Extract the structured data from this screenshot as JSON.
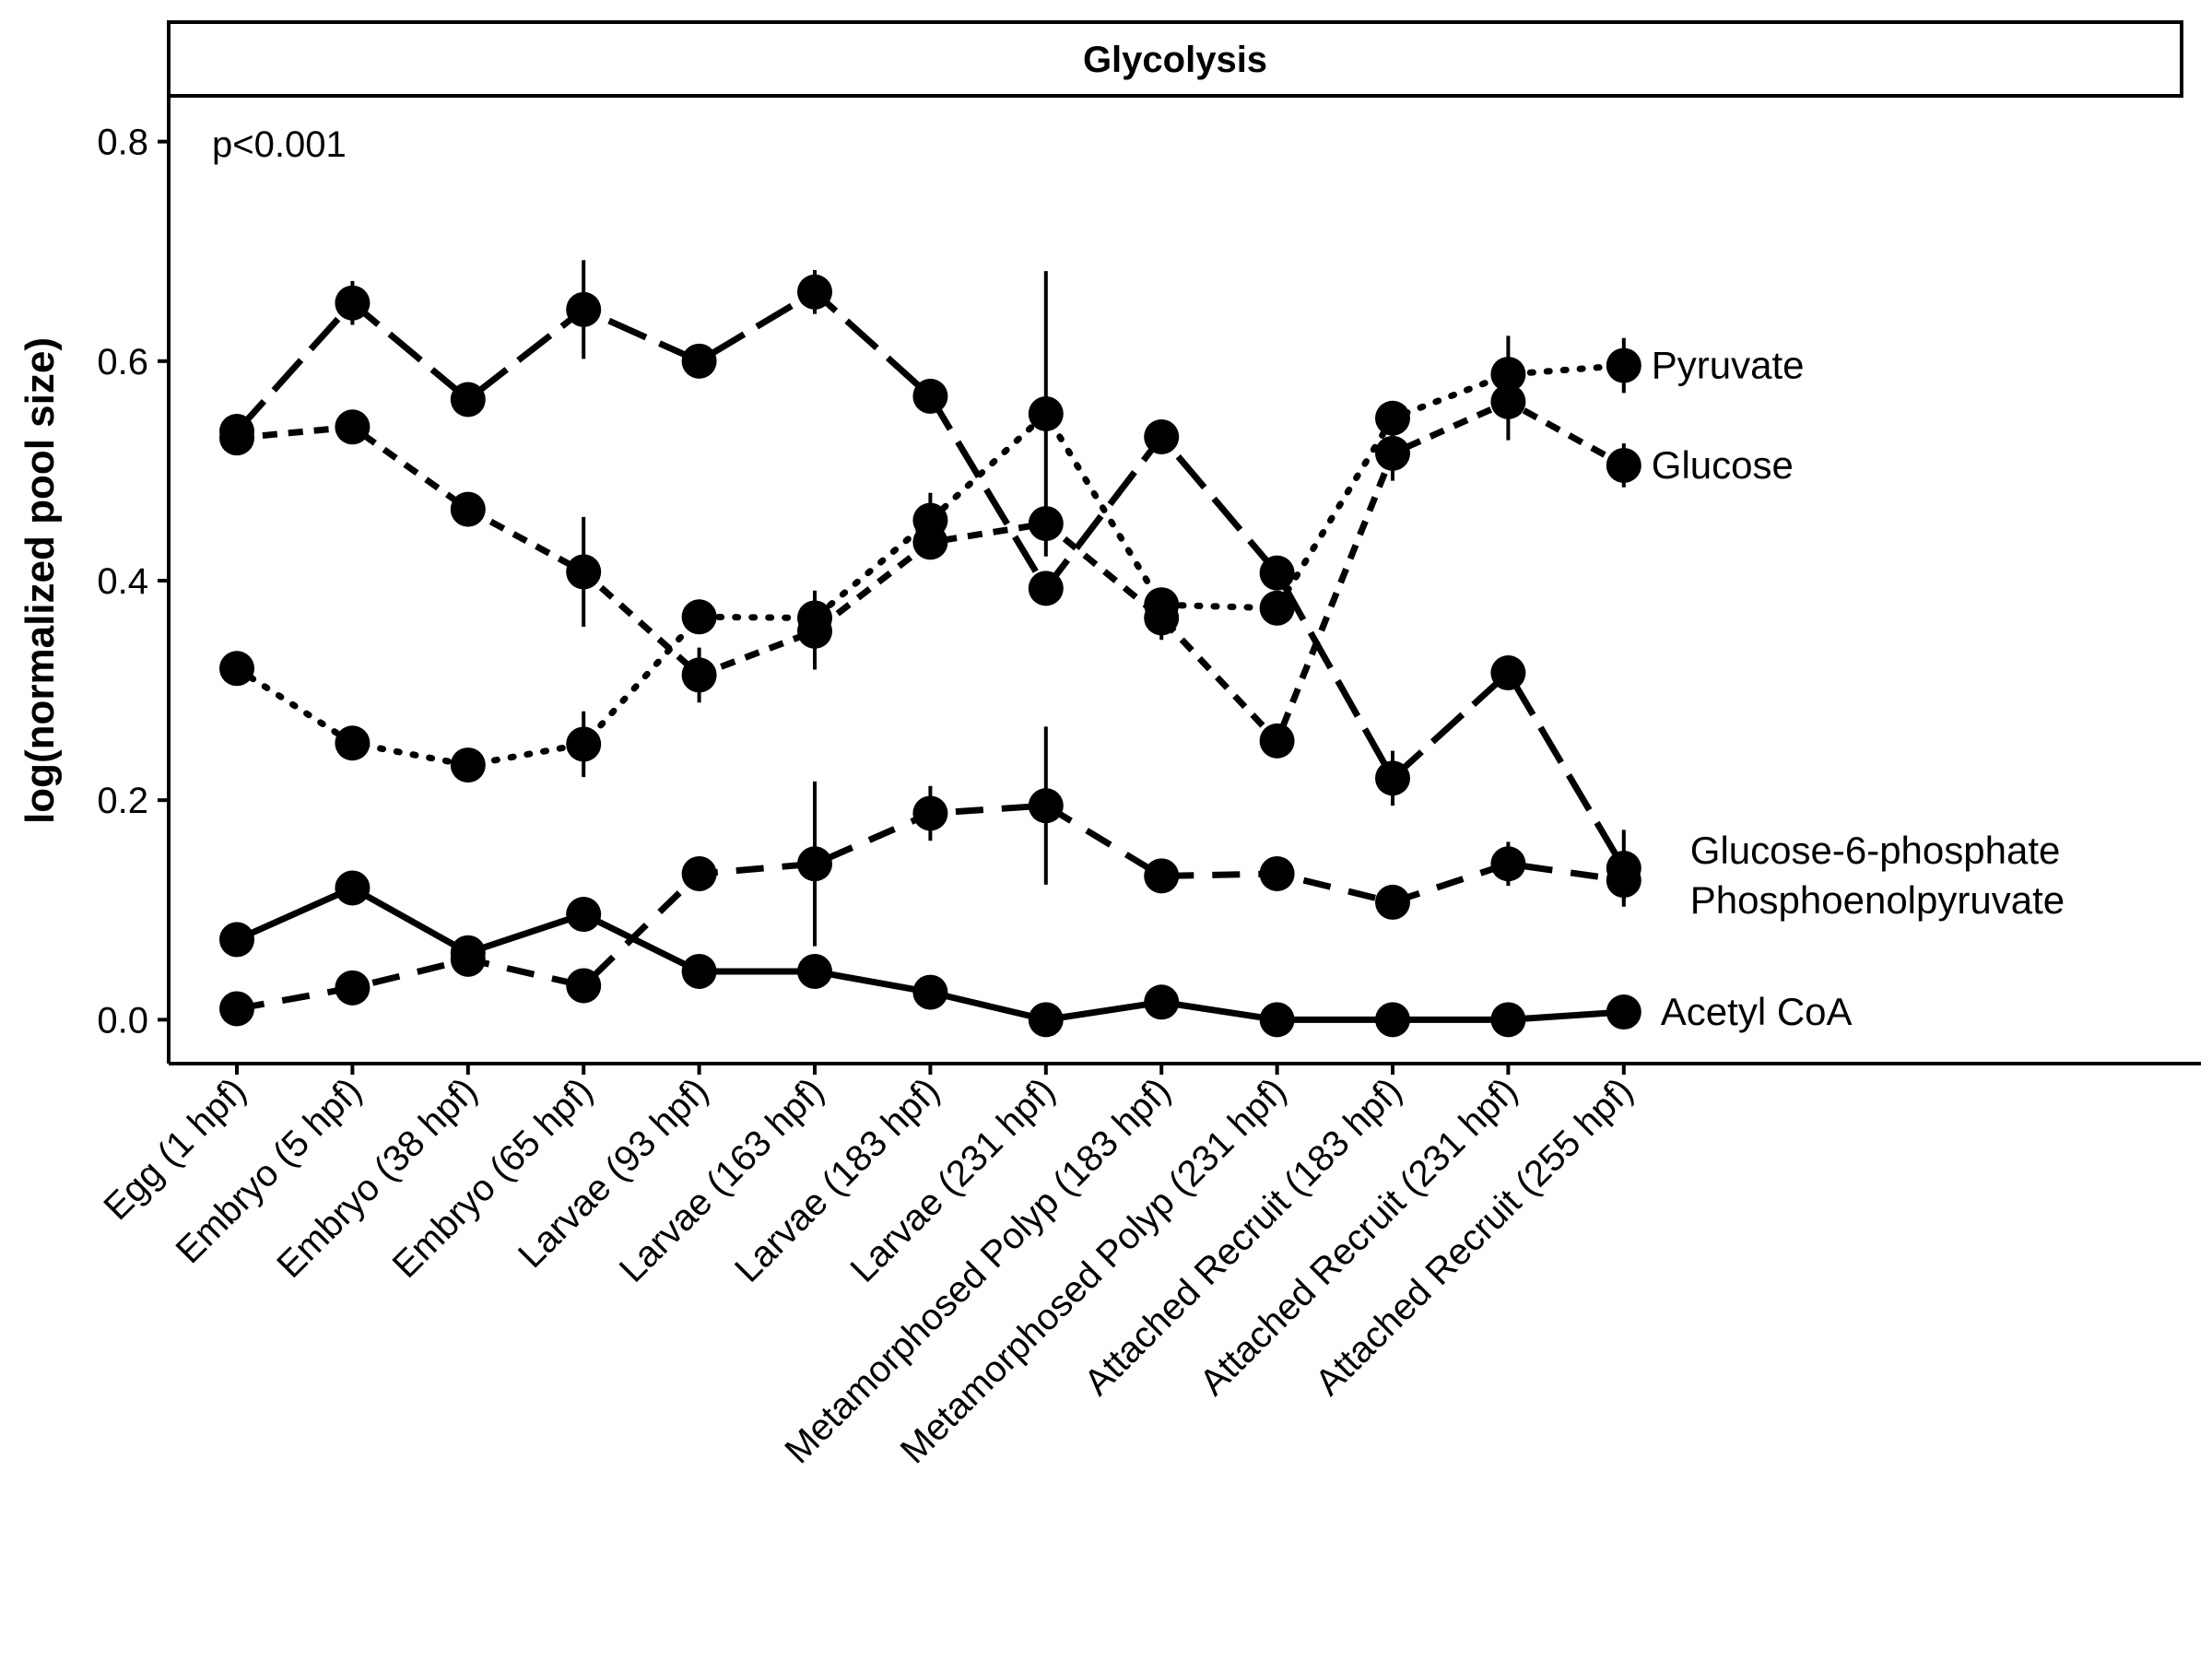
{
  "chart_data": {
    "type": "line",
    "title": "Glycolysis",
    "annotation": "p<0.001",
    "xlabel": "",
    "ylabel": "log(normalized pool size)",
    "ylim": [
      -0.04,
      0.84
    ],
    "yticks": [
      "0.0",
      "0.2",
      "0.4",
      "0.6",
      "0.8"
    ],
    "ytick_values": [
      0.0,
      0.2,
      0.4,
      0.6,
      0.8
    ],
    "grid": false,
    "legend": "direct-labels-right",
    "colors": {
      "ink": "#000000",
      "background": "#ffffff"
    },
    "categories": [
      "Egg (1 hpf)",
      "Embryo (5 hpf)",
      "Embryo (38 hpf)",
      "Embryo (65 hpf)",
      "Larvae (93 hpf)",
      "Larvae (163 hpf)",
      "Larvae (183 hpf)",
      "Larvae (231 hpf)",
      "Metamorphosed Polyp (183 hpf)",
      "Metamorphosed Polyp (231 hpf)",
      "Attached Recruit (183 hpf)",
      "Attached Recruit (231 hpf)",
      "Attached Recruit (255 hpf)"
    ],
    "series": [
      {
        "name": "Pyruvate",
        "dash": "dotted",
        "values": [
          0.32,
          0.252,
          0.232,
          0.251,
          0.367,
          0.366,
          0.455,
          0.552,
          0.378,
          0.375,
          0.548,
          0.588,
          0.596
        ],
        "errors": [
          0.005,
          0.005,
          0.005,
          0.03,
          0.01,
          0.025,
          0.025,
          0.13,
          0.015,
          0.015,
          0.01,
          0.035,
          0.025
        ]
      },
      {
        "name": "Glucose",
        "dash": "dashed",
        "values": [
          0.53,
          0.54,
          0.465,
          0.408,
          0.314,
          0.354,
          0.435,
          0.452,
          0.366,
          0.254,
          0.516,
          0.563,
          0.505
        ],
        "errors": [
          0.005,
          0.005,
          0.005,
          0.05,
          0.025,
          0.035,
          0.01,
          0.015,
          0.02,
          0.005,
          0.025,
          0.035,
          0.02
        ]
      },
      {
        "name": "Glucose-6-phosphate",
        "dash": "longdash",
        "values": [
          0.536,
          0.653,
          0.565,
          0.647,
          0.6,
          0.663,
          0.568,
          0.393,
          0.531,
          0.407,
          0.22,
          0.316,
          0.138
        ],
        "errors": [
          0.005,
          0.02,
          0.005,
          0.045,
          0.005,
          0.02,
          0.005,
          0.005,
          0.005,
          0.005,
          0.025,
          0.005,
          0.035
        ]
      },
      {
        "name": "Phosphoenolpyruvate",
        "dash": "dashed-wide",
        "values": [
          0.01,
          0.029,
          0.055,
          0.031,
          0.133,
          0.142,
          0.188,
          0.195,
          0.131,
          0.133,
          0.107,
          0.142,
          0.127
        ],
        "errors": [
          0.005,
          0.005,
          0.005,
          0.005,
          0.005,
          0.075,
          0.025,
          0.072,
          0.005,
          0.005,
          0.005,
          0.02,
          0.02
        ]
      },
      {
        "name": "Acetyl CoA",
        "dash": "solid",
        "values": [
          0.073,
          0.12,
          0.061,
          0.096,
          0.044,
          0.044,
          0.025,
          0.0,
          0.016,
          0.0,
          0.0,
          0.0,
          0.007
        ],
        "errors": [
          0.005,
          0.005,
          0.005,
          0.005,
          0.005,
          0.005,
          0.005,
          0.005,
          0.005,
          0.005,
          0.005,
          0.005,
          0.005
        ]
      }
    ]
  }
}
